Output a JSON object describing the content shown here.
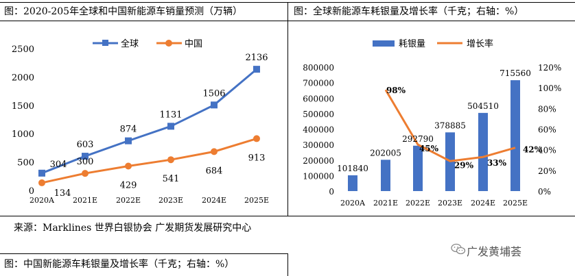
{
  "left_panel": {
    "title": "图：2020-205年全球和中国新能源车销量预测（万辆）"
  },
  "right_panel": {
    "title": "图：全球新能源车耗银量及增长率（千克；右轴：%）"
  },
  "source": "来源：Marklines 世界白银协会 广发期货发展研究中心",
  "bottom_title": "图：中国新能源车耗银量及增长率（千克；右轴：%）",
  "watermark": "广发黄埔荟",
  "colors": {
    "blue": "#4472C4",
    "orange": "#ED7D31"
  },
  "chart_data": [
    {
      "type": "line",
      "categories": [
        "2020A",
        "2021E",
        "2022E",
        "2023E",
        "2024E",
        "2025E"
      ],
      "series": [
        {
          "name": "全球",
          "values": [
            304,
            603,
            874,
            1131,
            1506,
            2136
          ]
        },
        {
          "name": "中国",
          "values": [
            134,
            300,
            429,
            541,
            684,
            913
          ]
        }
      ],
      "yticks": [
        "0",
        "500",
        "1000",
        "1500",
        "2000",
        "2500"
      ],
      "ylim": [
        0,
        2500
      ],
      "legend": "top-center"
    },
    {
      "type": "bar",
      "categories": [
        "2020A",
        "2021E",
        "2022E",
        "2023E",
        "2024E",
        "2025E"
      ],
      "series": [
        {
          "name": "耗银量",
          "type": "bar",
          "axis": "left",
          "values": [
            101840,
            202005,
            292790,
            378885,
            504510,
            715560
          ]
        },
        {
          "name": "增长率",
          "type": "line",
          "axis": "right",
          "values": [
            null,
            98,
            45,
            29,
            33,
            42
          ],
          "labels": [
            "",
            "98%",
            "45%",
            "29%",
            "33%",
            "42%"
          ]
        }
      ],
      "yticks_left": [
        "0",
        "100000",
        "200000",
        "300000",
        "400000",
        "500000",
        "600000",
        "700000",
        "800000"
      ],
      "ylim_left": [
        0,
        800000
      ],
      "yticks_right": [
        "0%",
        "20%",
        "40%",
        "60%",
        "80%",
        "100%",
        "120%"
      ],
      "ylim_right": [
        0,
        120
      ],
      "legend": "top-center"
    }
  ]
}
